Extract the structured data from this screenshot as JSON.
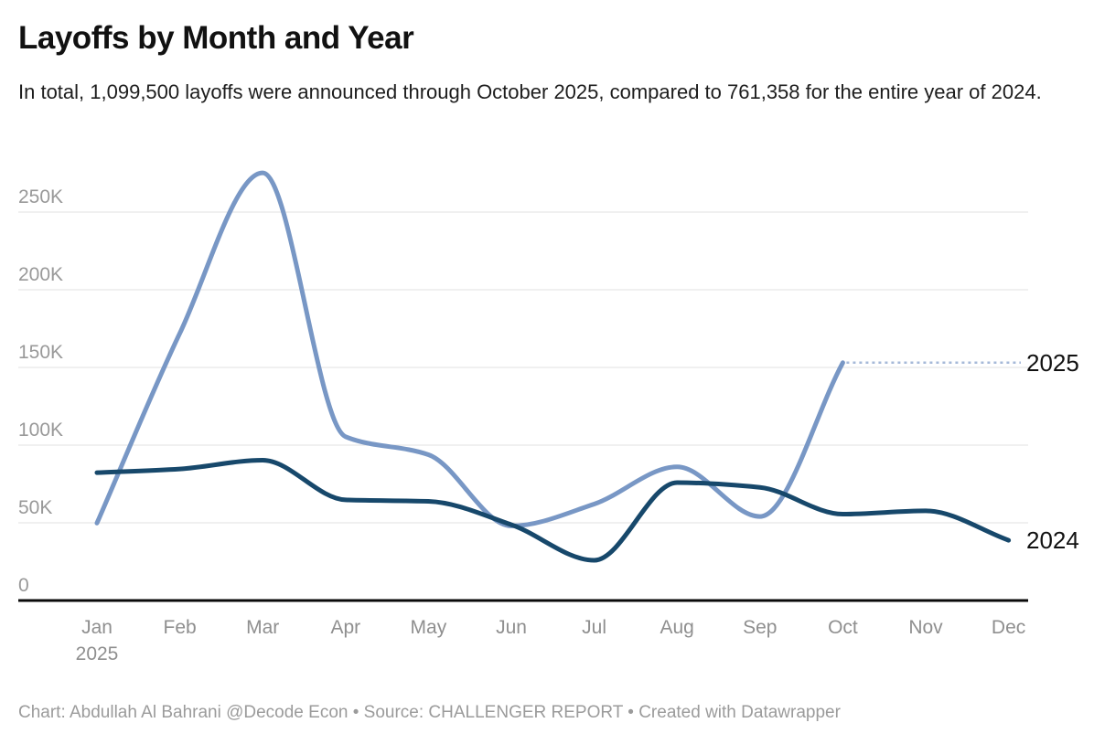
{
  "header": {
    "title": "Layoffs by Month and Year",
    "subtitle": "In total, 1,099,500 layoffs were announced through October 2025, compared to 761,358 for the entire year of 2024."
  },
  "footer": {
    "text": "Chart: Abdullah Al Bahrani @Decode Econ • Source: CHALLENGER REPORT • Created with Datawrapper"
  },
  "chart_data": {
    "type": "line",
    "title": "Layoffs by Month and Year",
    "categories": [
      "Jan",
      "Feb",
      "Mar",
      "Apr",
      "May",
      "Jun",
      "Jul",
      "Aug",
      "Sep",
      "Oct",
      "Nov",
      "Dec"
    ],
    "x_axis_year_label": "2025",
    "series": [
      {
        "name": "2025",
        "color": "#7897c5",
        "values": [
          49795,
          172017,
          275240,
          105441,
          93816,
          47999,
          62075,
          85979,
          54064,
          153074
        ],
        "end_label": "2025",
        "has_leader_line": true
      },
      {
        "name": "2024",
        "color": "#17486b",
        "values": [
          82307,
          84638,
          90309,
          64789,
          63816,
          48786,
          25885,
          75891,
          72821,
          55597,
          57727,
          38792
        ],
        "end_label": "2024",
        "has_leader_line": false
      }
    ],
    "yticks": {
      "values": [
        0,
        50000,
        100000,
        150000,
        200000,
        250000
      ],
      "labels": [
        "0",
        "50K",
        "100K",
        "150K",
        "200K",
        "250K"
      ]
    },
    "ylim": [
      0,
      250000
    ],
    "grid": "horizontal",
    "legend_position": "end-of-line-labels",
    "interpolation": "monotone",
    "colors": {
      "gridline": "#e2e2e2",
      "axis_baseline": "#0a0a0a",
      "tick_label": "#999999",
      "leader_line": "#a6b9d8",
      "end_label": "#111111"
    }
  }
}
